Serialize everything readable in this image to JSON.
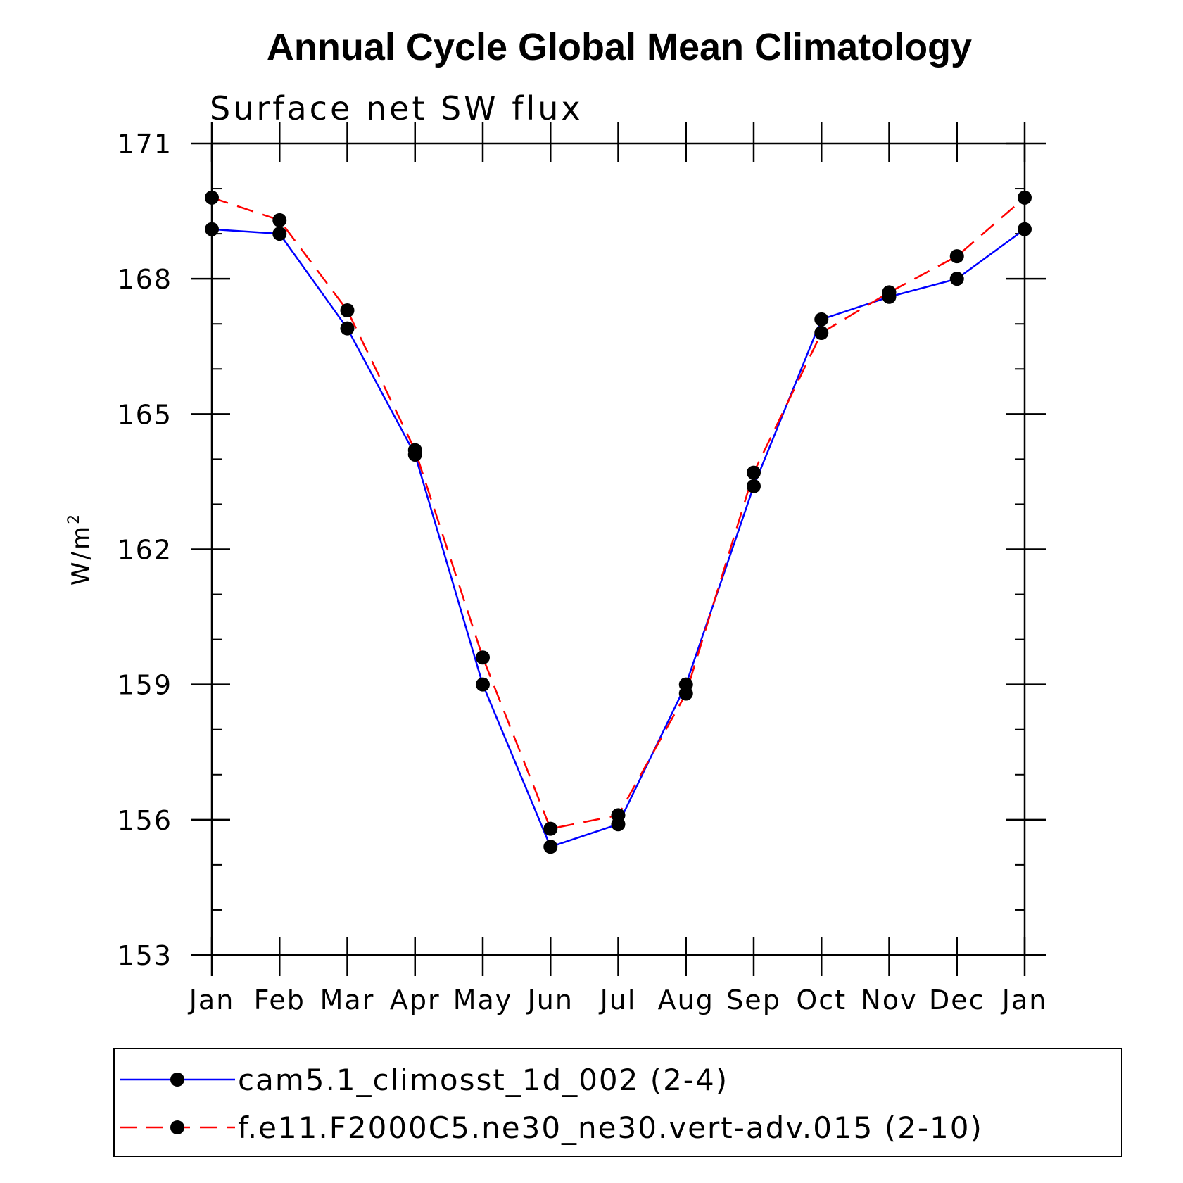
{
  "chart_data": {
    "type": "line",
    "title": "Annual Cycle Global Mean Climatology",
    "subtitle": "Surface net SW flux",
    "xlabel": "",
    "ylabel": "W/m",
    "ylabel_superscript": "2",
    "categories": [
      "Jan",
      "Feb",
      "Mar",
      "Apr",
      "May",
      "Jun",
      "Jul",
      "Aug",
      "Sep",
      "Oct",
      "Nov",
      "Dec",
      "Jan"
    ],
    "ylim": [
      153,
      171
    ],
    "yticks": [
      153,
      156,
      159,
      162,
      165,
      168,
      171
    ],
    "yticks_labels": [
      "153",
      "156",
      "159",
      "162",
      "165",
      "168",
      "171"
    ],
    "series": [
      {
        "name": "cam5.1_climosst_1d_002 (2-4)",
        "color": "#0000ff",
        "dash": "solid",
        "values": [
          169.1,
          169.0,
          166.9,
          164.1,
          159.0,
          155.4,
          155.9,
          159.0,
          163.4,
          167.1,
          167.6,
          168.0,
          169.1
        ]
      },
      {
        "name": "f.e11.F2000C5.ne30_ne30.vert-adv.015 (2-10)",
        "color": "#ff0000",
        "dash": "dashed",
        "values": [
          169.8,
          169.3,
          167.3,
          164.2,
          159.6,
          155.8,
          156.1,
          158.8,
          163.7,
          166.8,
          167.7,
          168.5,
          169.8
        ]
      }
    ],
    "legend_position": "bottom"
  }
}
